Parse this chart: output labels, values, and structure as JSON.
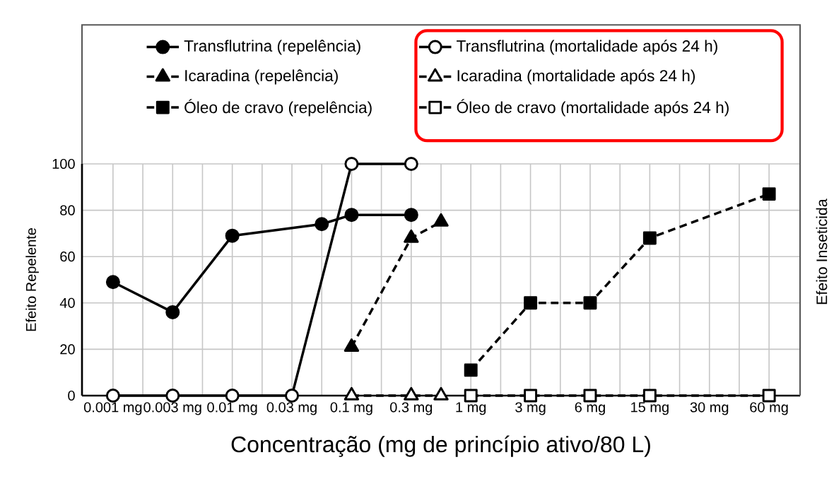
{
  "chart_data": {
    "type": "line",
    "xlabel": "Concentração (mg de princípio ativo/80 L)",
    "ylabel": "Efeito Repelente",
    "y2label": "Efeito Inseticida",
    "categories": [
      "0.001 mg",
      null,
      "0.003 mg",
      null,
      "0.01 mg",
      null,
      "0.03 mg",
      null,
      "0.1 mg",
      null,
      "0.3 mg",
      null,
      "1 mg",
      null,
      "3 mg",
      null,
      "6 mg",
      null,
      "15 mg",
      null,
      "30 mg",
      null,
      "60 mg"
    ],
    "ylim": [
      0,
      100
    ],
    "yticks": [
      0,
      20,
      40,
      60,
      80,
      100
    ],
    "grid": true,
    "legend": "top",
    "series": [
      {
        "name": "Transflutrina (repelência)",
        "color": "#000000",
        "marker": "circle",
        "line_style": "solid",
        "values": [
          49,
          null,
          36,
          null,
          69,
          null,
          null,
          74,
          78,
          null,
          78,
          null,
          null,
          null,
          null,
          null,
          null,
          null,
          null,
          null,
          null,
          null,
          null
        ]
      },
      {
        "name": "Transflutrina (mortalidade após 24 h)",
        "color": "#ffffff",
        "marker": "circle",
        "line_style": "solid",
        "values": [
          0,
          null,
          0,
          null,
          0,
          null,
          0,
          null,
          100,
          null,
          100,
          null,
          null,
          null,
          null,
          null,
          null,
          null,
          null,
          null,
          null,
          null,
          null
        ]
      },
      {
        "name": "Icaradina (repelência)",
        "color": "#000000",
        "marker": "triangle",
        "line_style": "dashed",
        "values": [
          null,
          null,
          null,
          null,
          null,
          null,
          null,
          null,
          21,
          null,
          68,
          75,
          null,
          null,
          null,
          null,
          null,
          null,
          null,
          null,
          null,
          null,
          null
        ]
      },
      {
        "name": "Icaradina (mortalidade após 24 h)",
        "color": "#ffffff",
        "marker": "triangle",
        "line_style": "dashed",
        "values": [
          null,
          null,
          null,
          null,
          null,
          null,
          null,
          null,
          0,
          null,
          0,
          0,
          null,
          null,
          null,
          null,
          null,
          null,
          null,
          null,
          null,
          null,
          null
        ]
      },
      {
        "name": "Óleo de cravo (repelência)",
        "color": "#000000",
        "marker": "square",
        "line_style": "dashed",
        "values": [
          null,
          null,
          null,
          null,
          null,
          null,
          null,
          null,
          null,
          null,
          null,
          null,
          11,
          null,
          40,
          null,
          40,
          null,
          68,
          null,
          null,
          null,
          87
        ]
      },
      {
        "name": "Óleo de cravo (mortalidade após 24 h)",
        "color": "#ffffff",
        "marker": "square",
        "line_style": "dashed",
        "values": [
          null,
          null,
          null,
          null,
          null,
          null,
          null,
          null,
          null,
          null,
          null,
          null,
          0,
          null,
          0,
          null,
          0,
          null,
          0,
          null,
          null,
          null,
          0
        ]
      }
    ]
  }
}
